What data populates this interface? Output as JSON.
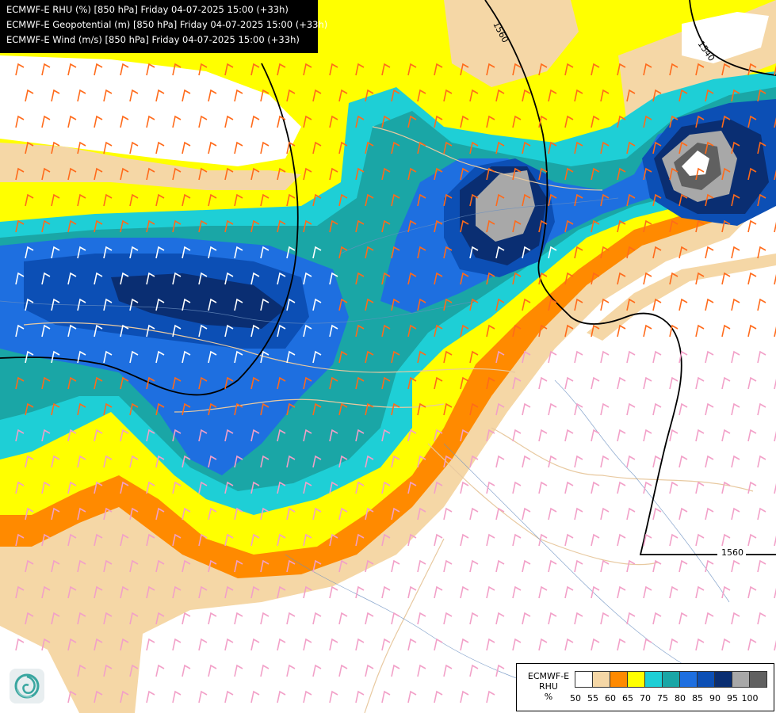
{
  "header": {
    "lines": [
      "ECMWF-E RHU (%) [850 hPa] Friday 04-07-2025 15:00 (+33h)",
      "ECMWF-E Geopotential (m) [850 hPa] Friday 04-07-2025 15:00 (+33h)",
      "ECMWF-E Wind (m/s) [850 hPa] Friday 04-07-2025 15:00 (+33h)"
    ]
  },
  "legend": {
    "title": [
      "ECMWF-E",
      "RHU",
      "%"
    ],
    "levels": [
      {
        "label": "50",
        "color": "#ffffff"
      },
      {
        "label": "55",
        "color": "#f5d7a6"
      },
      {
        "label": "60",
        "color": "#ff8a00"
      },
      {
        "label": "65",
        "color": "#ffff00"
      },
      {
        "label": "70",
        "color": "#1ecfd6"
      },
      {
        "label": "75",
        "color": "#1aa6a6"
      },
      {
        "label": "80",
        "color": "#1e6fe0"
      },
      {
        "label": "85",
        "color": "#0c4fb5"
      },
      {
        "label": "90",
        "color": "#0a2e72"
      },
      {
        "label": "95",
        "color": "#a8a8a8"
      },
      {
        "label": "100",
        "color": "#606060"
      }
    ]
  },
  "contours": {
    "geopotential_labels": [
      "1560",
      "1540",
      "1560"
    ]
  },
  "icons": {
    "logo": "ecmwf-swirl-logo"
  }
}
